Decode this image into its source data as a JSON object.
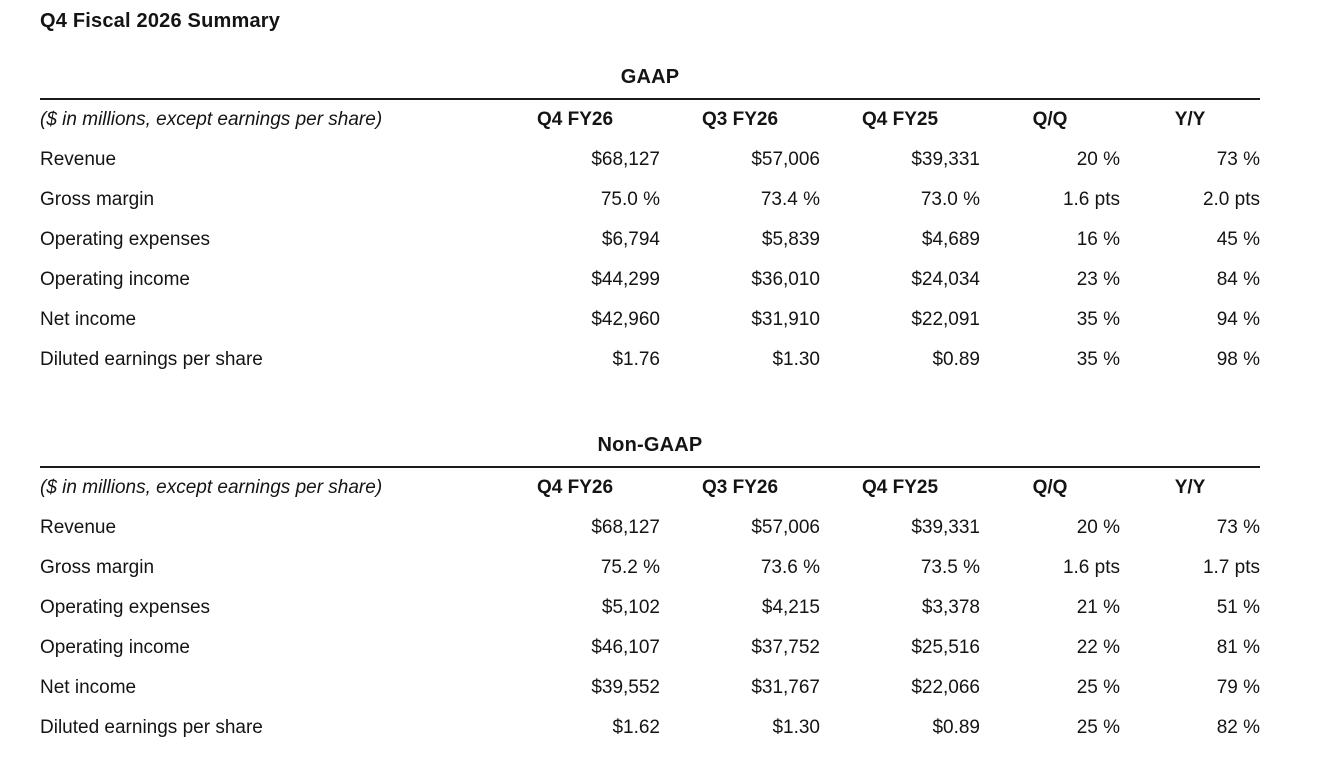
{
  "page": {
    "title": "Q4 Fiscal 2026 Summary"
  },
  "tables": [
    {
      "title": "GAAP",
      "unit_note": "($ in millions, except earnings per share)",
      "columns": [
        "Q4 FY26",
        "Q3 FY26",
        "Q4 FY25",
        "Q/Q",
        "Y/Y"
      ],
      "rows": [
        {
          "label": "Revenue",
          "values": [
            "$68,127",
            "$57,006",
            "$39,331",
            "20 %",
            "73 %"
          ]
        },
        {
          "label": "Gross margin",
          "values": [
            "75.0 %",
            "73.4 %",
            "73.0 %",
            "1.6 pts",
            "2.0 pts"
          ]
        },
        {
          "label": "Operating expenses",
          "values": [
            "$6,794",
            "$5,839",
            "$4,689",
            "16 %",
            "45 %"
          ]
        },
        {
          "label": "Operating income",
          "values": [
            "$44,299",
            "$36,010",
            "$24,034",
            "23 %",
            "84 %"
          ]
        },
        {
          "label": "Net income",
          "values": [
            "$42,960",
            "$31,910",
            "$22,091",
            "35 %",
            "94 %"
          ]
        },
        {
          "label": "Diluted earnings per share",
          "values": [
            "$1.76",
            "$1.30",
            "$0.89",
            "35 %",
            "98 %"
          ]
        }
      ]
    },
    {
      "title": "Non-GAAP",
      "unit_note": "($ in millions, except earnings per share)",
      "columns": [
        "Q4 FY26",
        "Q3 FY26",
        "Q4 FY25",
        "Q/Q",
        "Y/Y"
      ],
      "rows": [
        {
          "label": "Revenue",
          "values": [
            "$68,127",
            "$57,006",
            "$39,331",
            "20 %",
            "73 %"
          ]
        },
        {
          "label": "Gross margin",
          "values": [
            "75.2 %",
            "73.6 %",
            "73.5 %",
            "1.6 pts",
            "1.7 pts"
          ]
        },
        {
          "label": "Operating expenses",
          "values": [
            "$5,102",
            "$4,215",
            "$3,378",
            "21 %",
            "51 %"
          ]
        },
        {
          "label": "Operating income",
          "values": [
            "$46,107",
            "$37,752",
            "$25,516",
            "22 %",
            "81 %"
          ]
        },
        {
          "label": "Net income",
          "values": [
            "$39,552",
            "$31,767",
            "$22,066",
            "25 %",
            "79 %"
          ]
        },
        {
          "label": "Diluted earnings per share",
          "values": [
            "$1.62",
            "$1.30",
            "$0.89",
            "25 %",
            "82 %"
          ]
        }
      ]
    }
  ]
}
